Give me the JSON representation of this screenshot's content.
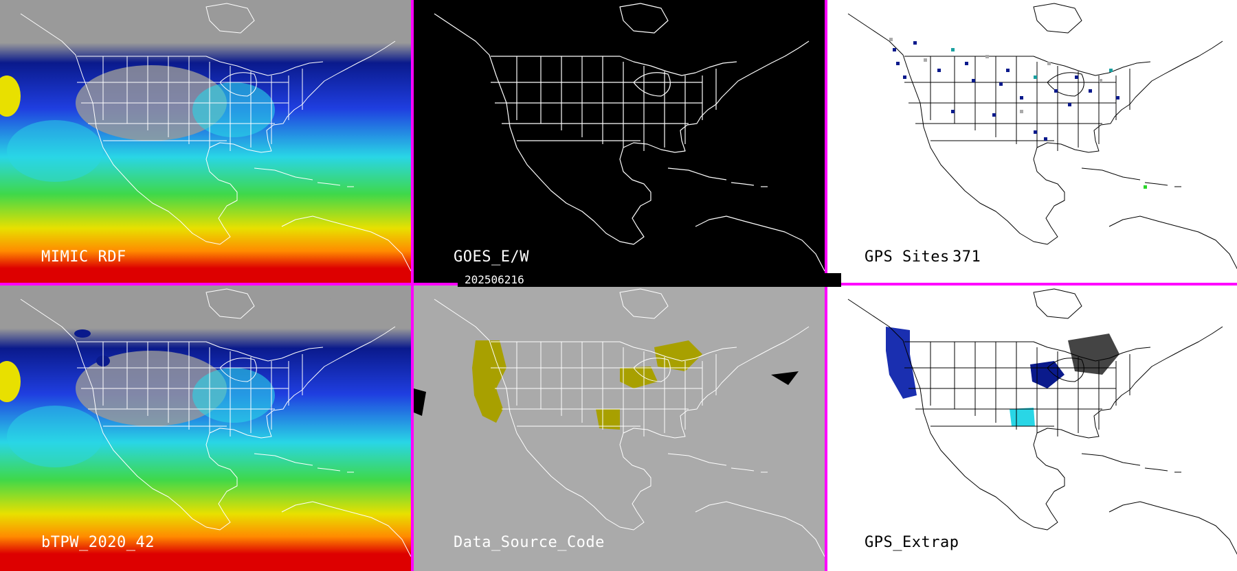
{
  "panels": [
    {
      "id": "mimic-rdf",
      "label": "MIMIC RDF",
      "style": "tpw"
    },
    {
      "id": "goes",
      "label": "GOES_E/W",
      "style": "outline-black"
    },
    {
      "id": "gps-sites",
      "label": "GPS Sites",
      "count": "371",
      "style": "sites"
    },
    {
      "id": "btpw",
      "label": "bTPW_2020_42",
      "style": "tpw"
    },
    {
      "id": "data-source",
      "label": "Data_Source_Code",
      "style": "outline-gray"
    },
    {
      "id": "gps-extrap",
      "label": "GPS_Extrap",
      "style": "extrap"
    }
  ],
  "timestamp": "202506216",
  "colors": {
    "separator": "#ff00ff",
    "outline_white": "#ffffff",
    "outline_black": "#000000",
    "gray_bg": "#aaaaaa",
    "data_source_fill": "#a8a000",
    "tpw_scale": [
      "#9a9a9a",
      "#0a1a8c",
      "#1f3ee0",
      "#29d6e6",
      "#3fd84a",
      "#e8e000",
      "#ff8a00",
      "#dd0000"
    ]
  }
}
